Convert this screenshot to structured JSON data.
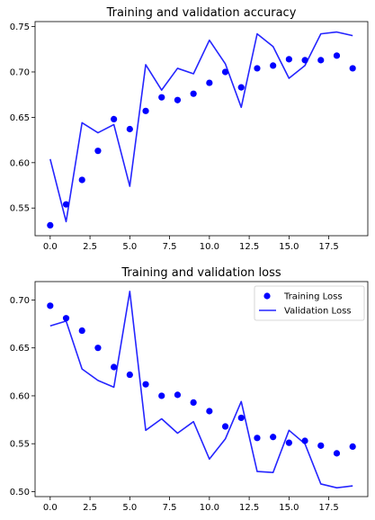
{
  "chart_data": [
    {
      "type": "line",
      "title": "Training and validation accuracy",
      "xlabel": "",
      "ylabel": "",
      "xlim": [
        -0.95,
        19.95
      ],
      "ylim": [
        0.5195,
        0.7555
      ],
      "x_ticks": [
        0.0,
        2.5,
        5.0,
        7.5,
        10.0,
        12.5,
        15.0,
        17.5
      ],
      "x_tick_labels": [
        "0.0",
        "2.5",
        "5.0",
        "7.5",
        "10.0",
        "12.5",
        "15.0",
        "17.5"
      ],
      "y_ticks": [
        0.55,
        0.6,
        0.65,
        0.7,
        0.75
      ],
      "y_tick_labels": [
        "0.55",
        "0.60",
        "0.65",
        "0.70",
        "0.75"
      ],
      "grid": false,
      "legend": null,
      "x": [
        0,
        1,
        2,
        3,
        4,
        5,
        6,
        7,
        8,
        9,
        10,
        11,
        12,
        13,
        14,
        15,
        16,
        17,
        18,
        19
      ],
      "series": [
        {
          "kind": "scatter",
          "color": "#0000ff",
          "values": [
            0.531,
            0.554,
            0.581,
            0.613,
            0.648,
            0.637,
            0.657,
            0.672,
            0.669,
            0.676,
            0.688,
            0.7,
            0.683,
            0.704,
            0.707,
            0.714,
            0.713,
            0.713,
            0.718,
            0.704
          ]
        },
        {
          "kind": "line",
          "color": "#2525ff",
          "values": [
            0.604,
            0.535,
            0.644,
            0.633,
            0.642,
            0.574,
            0.708,
            0.68,
            0.704,
            0.698,
            0.735,
            0.709,
            0.661,
            0.742,
            0.728,
            0.693,
            0.707,
            0.742,
            0.744,
            0.74
          ]
        }
      ]
    },
    {
      "type": "line",
      "title": "Training and validation loss",
      "xlabel": "",
      "ylabel": "",
      "xlim": [
        -0.95,
        19.95
      ],
      "ylim": [
        0.4948,
        0.7192
      ],
      "x_ticks": [
        0.0,
        2.5,
        5.0,
        7.5,
        10.0,
        12.5,
        15.0,
        17.5
      ],
      "x_tick_labels": [
        "0.0",
        "2.5",
        "5.0",
        "7.5",
        "10.0",
        "12.5",
        "15.0",
        "17.5"
      ],
      "y_ticks": [
        0.5,
        0.55,
        0.6,
        0.65,
        0.7
      ],
      "y_tick_labels": [
        "0.50",
        "0.55",
        "0.60",
        "0.65",
        "0.70"
      ],
      "grid": false,
      "legend": "top-right",
      "x": [
        0,
        1,
        2,
        3,
        4,
        5,
        6,
        7,
        8,
        9,
        10,
        11,
        12,
        13,
        14,
        15,
        16,
        17,
        18,
        19
      ],
      "series": [
        {
          "kind": "scatter",
          "name": "Training Loss",
          "color": "#0000ff",
          "values": [
            0.694,
            0.681,
            0.668,
            0.65,
            0.63,
            0.622,
            0.612,
            0.6,
            0.601,
            0.593,
            0.584,
            0.568,
            0.577,
            0.556,
            0.557,
            0.551,
            0.553,
            0.548,
            0.54,
            0.547
          ]
        },
        {
          "kind": "line",
          "name": "Validation Loss",
          "color": "#2525ff",
          "values": [
            0.673,
            0.678,
            0.628,
            0.616,
            0.609,
            0.709,
            0.564,
            0.576,
            0.561,
            0.573,
            0.534,
            0.555,
            0.594,
            0.521,
            0.52,
            0.564,
            0.55,
            0.508,
            0.504,
            0.506
          ]
        }
      ]
    }
  ]
}
